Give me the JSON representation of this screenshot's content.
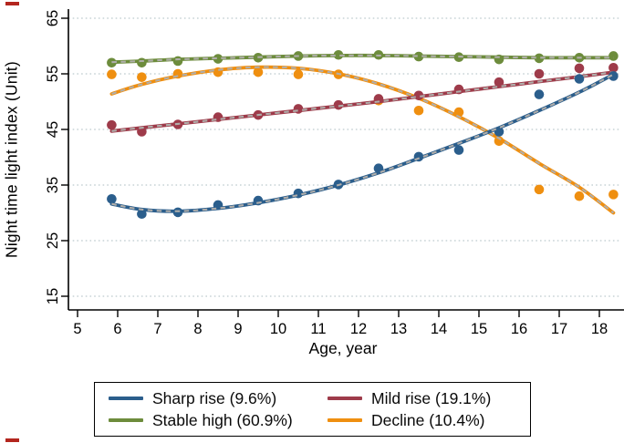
{
  "figure": {
    "ylabel": "Night time light index (Unit)",
    "xlabel": "Age, year"
  },
  "chart_data": {
    "type": "scatter",
    "subtype": "group-based trajectory plot: scatter means + smooth fitted curves (colored line with gray dash overlay)",
    "title": "",
    "xlabel": "Age, year",
    "ylabel": "Night time light index (Unit)",
    "x_ticks": [
      5,
      6,
      7,
      8,
      9,
      10,
      11,
      12,
      13,
      14,
      15,
      16,
      17,
      18
    ],
    "y_ticks": [
      15,
      25,
      35,
      45,
      55,
      65
    ],
    "xlim": [
      4.8,
      18.6
    ],
    "ylim": [
      12.5,
      66.5
    ],
    "grid": "horizontal dotted gridlines at each y tick",
    "legend_position": "boxed legend centered below plot, 2 columns",
    "scatter_x": [
      5.85,
      6.6,
      7.5,
      8.5,
      9.5,
      10.5,
      11.5,
      12.5,
      13.5,
      14.5,
      15.5,
      16.5,
      17.5,
      18.35
    ],
    "series": [
      {
        "name": "Sharp rise (9.6%)",
        "color": "#2b5e8c",
        "dots": [
          32.5,
          29.8,
          30.1,
          31.4,
          32.2,
          33.5,
          35.1,
          38.0,
          40.1,
          41.3,
          44.6,
          51.3,
          54.1,
          54.6
        ],
        "fit": [
          31.6,
          30.6,
          30.3,
          30.8,
          31.8,
          33.2,
          35.0,
          37.2,
          39.8,
          42.5,
          45.3,
          48.4,
          51.7,
          54.9
        ]
      },
      {
        "name": "Mild rise (19.1%)",
        "color": "#9e3b4a",
        "dots": [
          45.8,
          44.6,
          45.9,
          47.2,
          47.6,
          48.7,
          49.4,
          50.5,
          51.1,
          52.2,
          53.5,
          55.0,
          56.0,
          56.1
        ],
        "fit": [
          44.7,
          45.3,
          46.0,
          46.8,
          47.6,
          48.4,
          49.2,
          50.0,
          50.9,
          51.8,
          52.7,
          53.6,
          54.5,
          55.3
        ]
      },
      {
        "name": "Stable high (60.9%)",
        "color": "#6d8c3c",
        "dots": [
          57.0,
          57.0,
          57.3,
          57.7,
          57.9,
          58.2,
          58.4,
          58.4,
          58.1,
          58.0,
          57.6,
          57.8,
          57.9,
          58.2
        ],
        "fit": [
          57.1,
          57.3,
          57.6,
          57.8,
          58.0,
          58.2,
          58.3,
          58.3,
          58.2,
          58.1,
          58.0,
          57.9,
          57.9,
          57.9
        ]
      },
      {
        "name": "Decline (10.4%)",
        "color": "#ef8f10",
        "dots": [
          54.9,
          54.4,
          55.0,
          55.3,
          55.3,
          54.9,
          54.9,
          50.2,
          48.4,
          48.1,
          42.9,
          34.2,
          33.0,
          33.3
        ],
        "fit": [
          51.4,
          53.1,
          54.6,
          55.7,
          56.2,
          56.0,
          55.0,
          53.2,
          50.6,
          47.3,
          43.4,
          38.9,
          34.6,
          30.0
        ]
      }
    ]
  },
  "legend": {
    "items": [
      {
        "label": "Sharp rise (9.6%)",
        "color": "#2b5e8c"
      },
      {
        "label": "Mild rise (19.1%)",
        "color": "#9e3b4a"
      },
      {
        "label": "Stable high (60.9%)",
        "color": "#6d8c3c"
      },
      {
        "label": "Decline (10.4%)",
        "color": "#ef8f10"
      }
    ]
  }
}
